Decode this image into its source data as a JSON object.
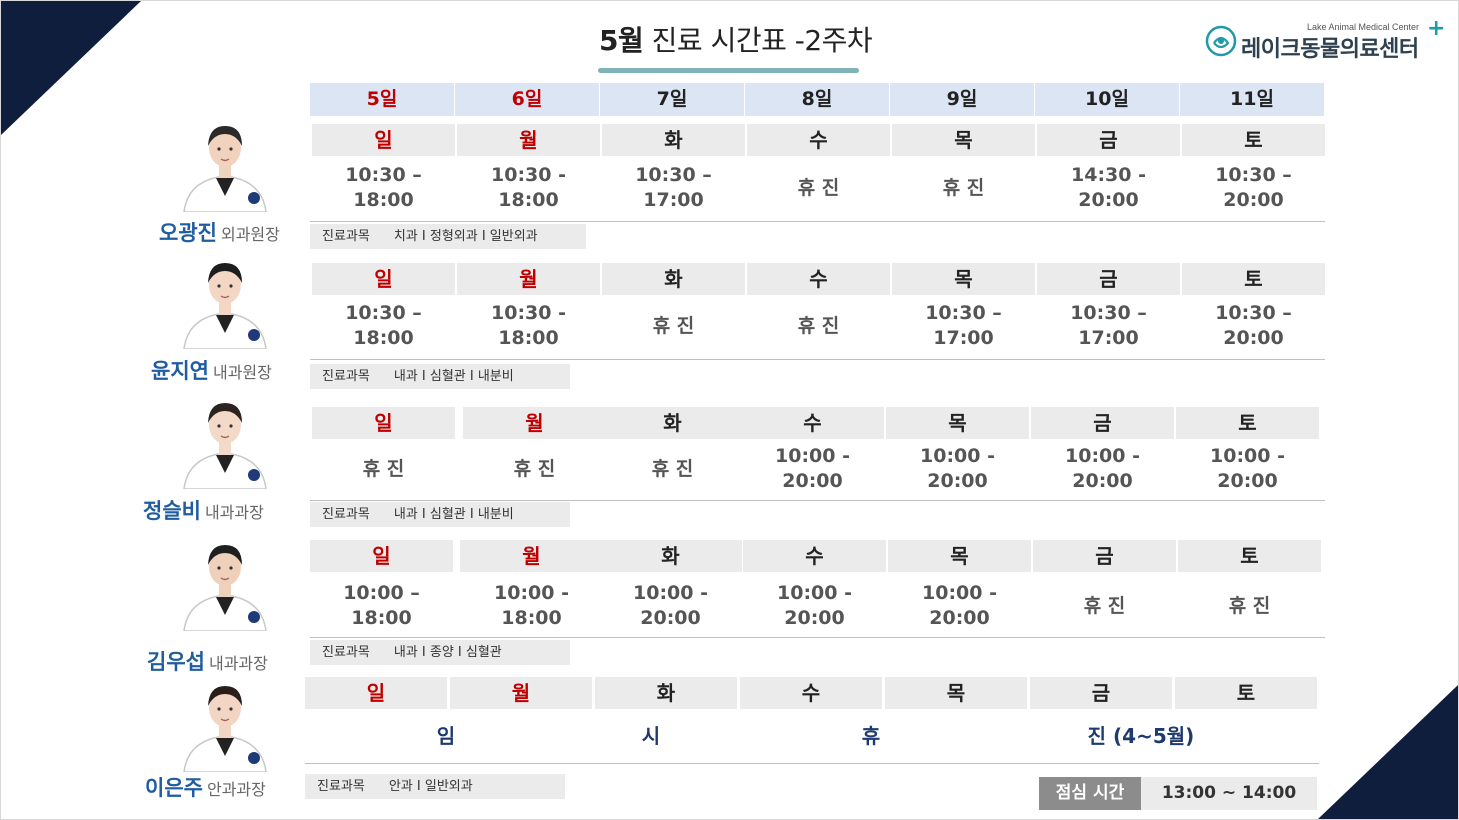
{
  "title": {
    "highlight": "5월",
    "rest": " 진료 시간표 -2주차"
  },
  "logo": {
    "english": "Lake Animal Medical Center",
    "korean": "레이크동물의료센터",
    "plus": "+"
  },
  "colors": {
    "navy": "#0f1e3d",
    "red": "#c00000",
    "doctor_name": "#1f5da0",
    "accent": "#7fb3b5"
  },
  "dates": [
    "5일",
    "6일",
    "7일",
    "8일",
    "9일",
    "10일",
    "11일"
  ],
  "weekdays": [
    "일",
    "월",
    "화",
    "수",
    "목",
    "금",
    "토"
  ],
  "subject_label": "진료과목",
  "doctors": [
    {
      "name": "오광진",
      "role": "외과원장",
      "subjects": "치과 I 정형외과 I 일반외과",
      "times": [
        "10:30 –\n18:00",
        "10:30 -\n18:00",
        "10:30 –\n17:00",
        "휴 진",
        "휴 진",
        "14:30 -\n20:00",
        "10:30 –\n20:00"
      ]
    },
    {
      "name": "윤지연",
      "role": "내과원장",
      "subjects": "내과 I 심혈관 I 내분비",
      "times": [
        "10:30 –\n18:00",
        "10:30 -\n18:00",
        "휴 진",
        "휴 진",
        "10:30 –\n17:00",
        "10:30 –\n17:00",
        "10:30 –\n20:00"
      ]
    },
    {
      "name": "정슬비",
      "role": "내과과장",
      "subjects": "내과 I 심혈관 I 내분비",
      "times": [
        "휴 진",
        "휴 진",
        "휴 진",
        "10:00 -\n20:00",
        "10:00 -\n20:00",
        "10:00 -\n20:00",
        "10:00 -\n20:00"
      ]
    },
    {
      "name": "김우섭",
      "role": "내과과장",
      "subjects": "내과 I 종양 I 심혈관",
      "times": [
        "10:00 –\n18:00",
        "10:00 -\n18:00",
        "10:00 -\n20:00",
        "10:00 -\n20:00",
        "10:00 -\n20:00",
        "휴 진",
        "휴 진"
      ]
    },
    {
      "name": "이은주",
      "role": "안과과장",
      "subjects": "안과 I 일반외과",
      "leave": [
        "임",
        "시",
        "휴",
        "진 (4~5월)"
      ]
    }
  ],
  "lunch": {
    "label": "점심 시간",
    "time": "13:00 ~ 14:00"
  }
}
